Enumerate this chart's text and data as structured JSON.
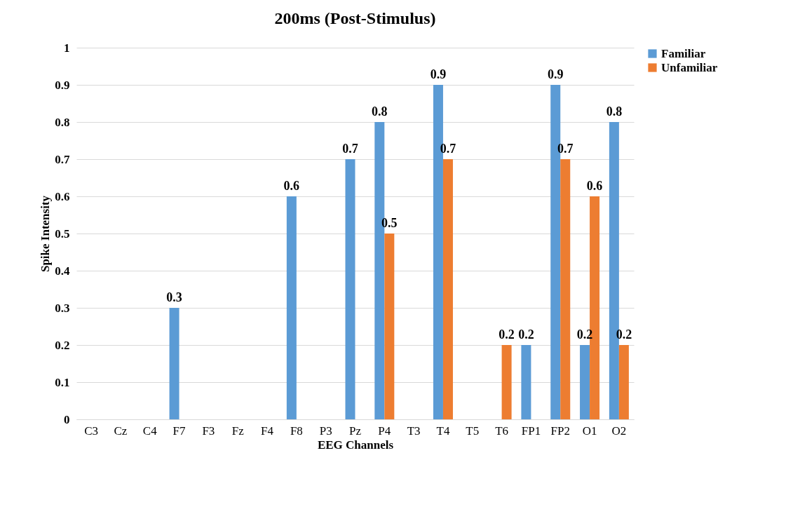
{
  "chart_data": {
    "type": "bar",
    "title": "200ms (Post-Stimulus)",
    "xlabel": "EEG Channels",
    "ylabel": "Spike Intensity",
    "categories": [
      "C3",
      "Cz",
      "C4",
      "F7",
      "F3",
      "Fz",
      "F4",
      "F8",
      "P3",
      "Pz",
      "P4",
      "T3",
      "T4",
      "T5",
      "T6",
      "FP1",
      "FP2",
      "O1",
      "O2"
    ],
    "series": [
      {
        "name": "Familiar",
        "color": "#5b9bd5",
        "values": [
          0,
          0,
          0,
          0.3,
          0,
          0,
          0,
          0.6,
          0,
          0.7,
          0.8,
          0,
          0.9,
          0,
          0,
          0.2,
          0.9,
          0.2,
          0.8
        ],
        "value_labels": [
          null,
          null,
          null,
          "0.3",
          null,
          null,
          null,
          "0.6",
          null,
          "0.7",
          "0.8",
          null,
          "0.9",
          null,
          null,
          "0.2",
          "0.9",
          "0.2",
          "0.8"
        ]
      },
      {
        "name": "Unfamiliar",
        "color": "#ed7d31",
        "values": [
          0,
          0,
          0,
          0,
          0,
          0,
          0,
          0,
          0,
          0,
          0.5,
          0,
          0.7,
          0,
          0.2,
          0,
          0.7,
          0.6,
          0.2
        ],
        "value_labels": [
          null,
          null,
          null,
          null,
          null,
          null,
          null,
          null,
          null,
          null,
          "0.5",
          null,
          "0.7",
          null,
          "0.2",
          null,
          "0.7",
          "0.6",
          "0.2"
        ]
      }
    ],
    "ylim": [
      0,
      1
    ],
    "yticks": [
      0,
      0.1,
      0.2,
      0.3,
      0.4,
      0.5,
      0.6,
      0.7,
      0.8,
      0.9,
      1
    ],
    "grid": "y",
    "legend": "right"
  }
}
